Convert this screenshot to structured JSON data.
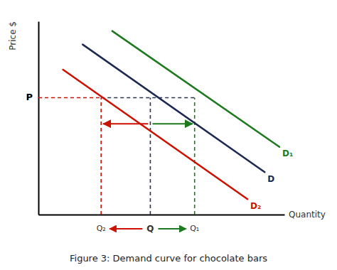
{
  "chart_data": {
    "type": "line",
    "title": "Figure 3: Demand curve for chocolate bars",
    "x_label": "Quantity",
    "y_label": "Price $",
    "xlim": [
      0,
      10
    ],
    "ylim": [
      0,
      10
    ],
    "xticks": [],
    "yticks": [],
    "tick_labels": false,
    "grid": false,
    "series": [
      {
        "name": "D",
        "color": "#1c2951",
        "x": [
          1.8,
          9.2
        ],
        "values": [
          8.8,
          2.2
        ]
      },
      {
        "name": "D₁",
        "color": "#1e7a1e",
        "x": [
          3.0,
          9.8
        ],
        "values": [
          9.5,
          3.5
        ]
      },
      {
        "name": "D₂",
        "color": "#cc1100",
        "x": [
          1.0,
          8.5
        ],
        "values": [
          7.5,
          0.8
        ]
      }
    ],
    "price_level": {
      "label": "P",
      "value": 6.05
    },
    "quantities": [
      {
        "label": "Q₂",
        "value": 2.55,
        "color": "#cc1100"
      },
      {
        "label": "Q",
        "value": 4.55,
        "color": "#2a3550"
      },
      {
        "label": "Q₁",
        "value": 6.35,
        "color": "#1e7a1e"
      }
    ],
    "shift_arrow_y": 4.7
  }
}
